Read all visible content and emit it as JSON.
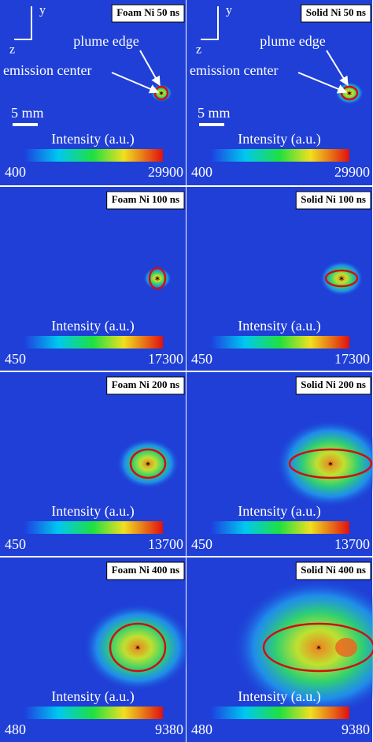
{
  "panels": [
    {
      "label": "Foam Ni 50 ns",
      "colorbar": {
        "title": "Intensity (a.u.)",
        "min": 400,
        "max": 29900
      }
    },
    {
      "label": "Solid Ni 50 ns",
      "colorbar": {
        "title": "Intensity (a.u.)",
        "min": 400,
        "max": 29900
      }
    },
    {
      "label": "Foam Ni 100 ns",
      "colorbar": {
        "title": "Intensity (a.u.)",
        "min": 450,
        "max": 17300
      }
    },
    {
      "label": "Solid Ni 100 ns",
      "colorbar": {
        "title": "Intensity (a.u.)",
        "min": 450,
        "max": 17300
      }
    },
    {
      "label": "Foam Ni 200 ns",
      "colorbar": {
        "title": "Intensity (a.u.)",
        "min": 450,
        "max": 13700
      }
    },
    {
      "label": "Solid Ni 200 ns",
      "colorbar": {
        "title": "Intensity (a.u.)",
        "min": 450,
        "max": 13700
      }
    },
    {
      "label": "Foam Ni 400 ns",
      "colorbar": {
        "title": "Intensity (a.u.)",
        "min": 480,
        "max": 9380
      }
    },
    {
      "label": "Solid Ni 400 ns",
      "colorbar": {
        "title": "Intensity (a.u.)",
        "min": 480,
        "max": 9380
      }
    }
  ],
  "annotations": {
    "axis_y": "y",
    "axis_z": "z",
    "plume_edge": "plume edge",
    "emission_center": "emission center",
    "scale_bar": "5 mm"
  }
}
